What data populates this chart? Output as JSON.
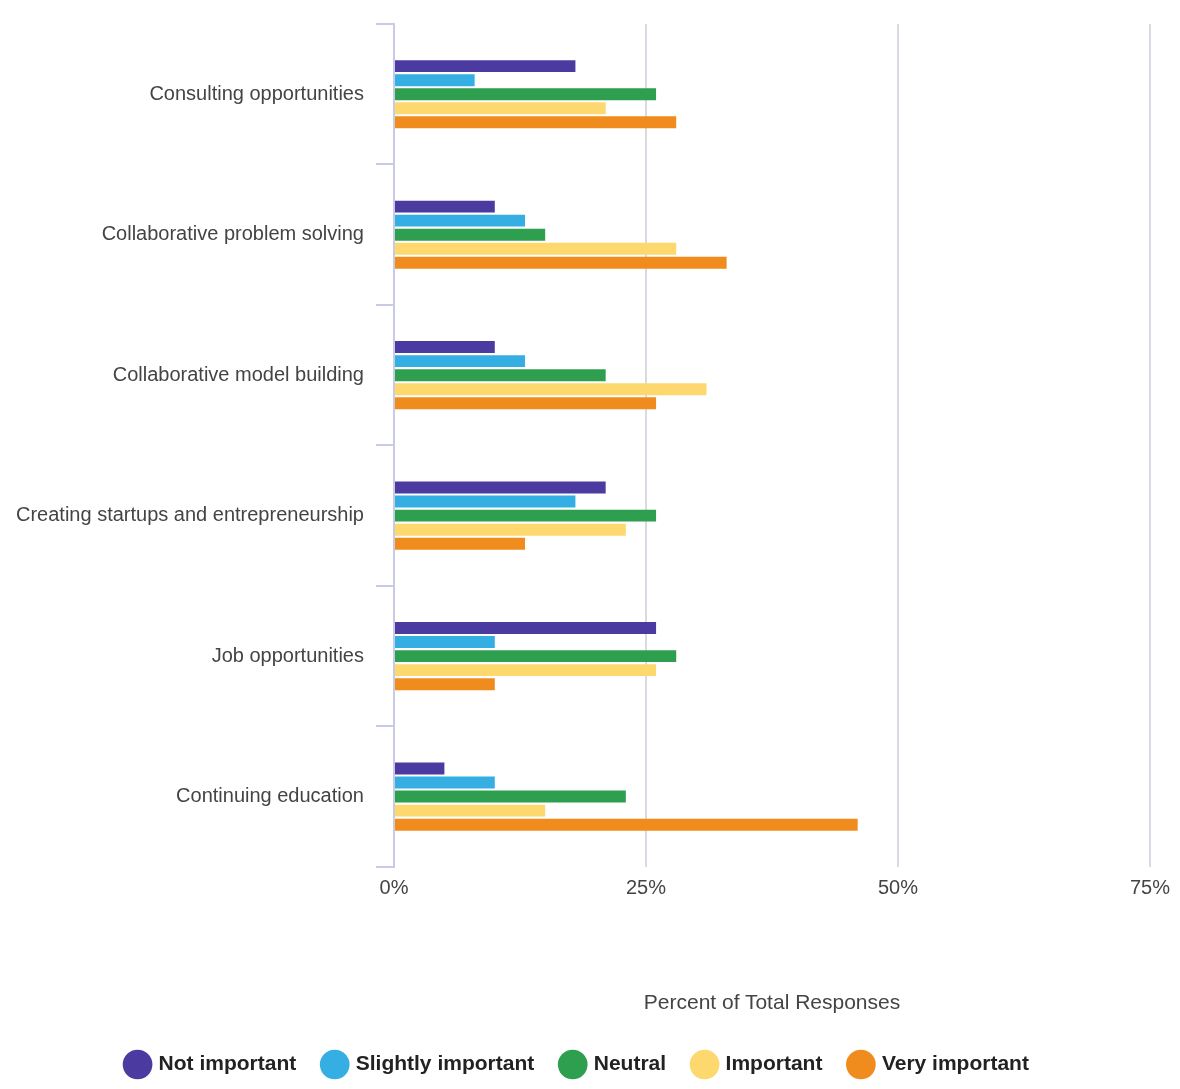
{
  "chart_data": {
    "type": "bar",
    "orientation": "horizontal",
    "xlabel": "Percent of Total Responses",
    "categories": [
      "Consulting opportunities",
      "Collaborative problem solving",
      "Collaborative model building",
      "Creating startups and entrepreneurship",
      "Job opportunities",
      "Continuing education"
    ],
    "series": [
      {
        "name": "Not important",
        "color": "#4b3ba0",
        "values": [
          18,
          10,
          10,
          21,
          26,
          5
        ]
      },
      {
        "name": "Slightly important",
        "color": "#35aee3",
        "values": [
          8,
          13,
          13,
          18,
          10,
          10
        ]
      },
      {
        "name": "Neutral",
        "color": "#2e9e4f",
        "values": [
          26,
          15,
          21,
          26,
          28,
          23
        ]
      },
      {
        "name": "Important",
        "color": "#fcd86e",
        "values": [
          21,
          28,
          31,
          23,
          26,
          15
        ]
      },
      {
        "name": "Very important",
        "color": "#f08c1e",
        "values": [
          28,
          33,
          26,
          13,
          10,
          46
        ]
      }
    ],
    "xlim": [
      0,
      75
    ],
    "xticks": [
      {
        "value": 0,
        "label": "0%"
      },
      {
        "value": 25,
        "label": "25%"
      },
      {
        "value": 50,
        "label": "50%"
      },
      {
        "value": 75,
        "label": "75%"
      }
    ],
    "grid": "x",
    "legend": "bottom"
  }
}
